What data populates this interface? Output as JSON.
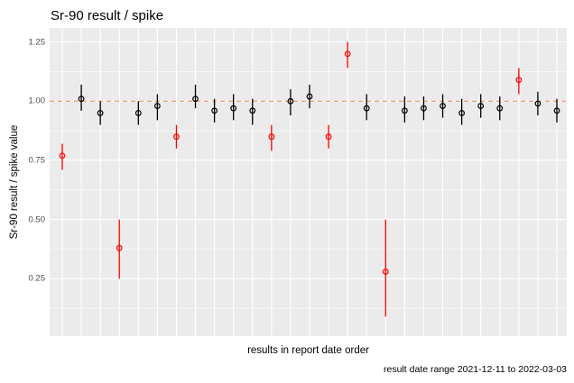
{
  "chart_data": {
    "type": "scatter",
    "title": "Sr-90 result / spike",
    "xlabel": "results in report date order",
    "ylabel": "Sr-90 result / spike value",
    "caption": "result date range 2021-12-11 to 2022-03-03",
    "legend": "none",
    "grid": true,
    "ylim": [
      0.0,
      1.31
    ],
    "yticks": [
      1.25,
      1.0,
      0.75,
      0.5,
      0.25
    ],
    "ytick_labels": [
      "1.25",
      "1.00",
      "0.75",
      "0.50",
      "0.25"
    ],
    "minor_gridlines": [
      1.125,
      0.875,
      0.625,
      0.375,
      0.125
    ],
    "reference_line": {
      "y": 1.0,
      "style": "dashed"
    },
    "points": [
      {
        "x": 1,
        "y": 0.77,
        "lo": 0.71,
        "hi": 0.82,
        "c": "red"
      },
      {
        "x": 2,
        "y": 1.01,
        "lo": 0.96,
        "hi": 1.07,
        "c": "black"
      },
      {
        "x": 3,
        "y": 0.95,
        "lo": 0.9,
        "hi": 1.0,
        "c": "black"
      },
      {
        "x": 4,
        "y": 0.38,
        "lo": 0.25,
        "hi": 0.5,
        "c": "red"
      },
      {
        "x": 5,
        "y": 0.95,
        "lo": 0.9,
        "hi": 1.0,
        "c": "black"
      },
      {
        "x": 6,
        "y": 0.98,
        "lo": 0.92,
        "hi": 1.03,
        "c": "black"
      },
      {
        "x": 7,
        "y": 0.85,
        "lo": 0.8,
        "hi": 0.9,
        "c": "red"
      },
      {
        "x": 8,
        "y": 1.01,
        "lo": 0.97,
        "hi": 1.07,
        "c": "black"
      },
      {
        "x": 9,
        "y": 0.96,
        "lo": 0.91,
        "hi": 1.01,
        "c": "black"
      },
      {
        "x": 10,
        "y": 0.97,
        "lo": 0.92,
        "hi": 1.03,
        "c": "black"
      },
      {
        "x": 11,
        "y": 0.96,
        "lo": 0.9,
        "hi": 1.01,
        "c": "black"
      },
      {
        "x": 12,
        "y": 0.85,
        "lo": 0.79,
        "hi": 0.9,
        "c": "red"
      },
      {
        "x": 13,
        "y": 1.0,
        "lo": 0.94,
        "hi": 1.05,
        "c": "black"
      },
      {
        "x": 14,
        "y": 1.02,
        "lo": 0.97,
        "hi": 1.07,
        "c": "black"
      },
      {
        "x": 15,
        "y": 0.85,
        "lo": 0.8,
        "hi": 0.9,
        "c": "red"
      },
      {
        "x": 16,
        "y": 1.2,
        "lo": 1.14,
        "hi": 1.25,
        "c": "red"
      },
      {
        "x": 17,
        "y": 0.97,
        "lo": 0.92,
        "hi": 1.03,
        "c": "black"
      },
      {
        "x": 18,
        "y": 0.28,
        "lo": 0.09,
        "hi": 0.5,
        "c": "red"
      },
      {
        "x": 19,
        "y": 0.96,
        "lo": 0.91,
        "hi": 1.02,
        "c": "black"
      },
      {
        "x": 20,
        "y": 0.97,
        "lo": 0.92,
        "hi": 1.02,
        "c": "black"
      },
      {
        "x": 21,
        "y": 0.98,
        "lo": 0.93,
        "hi": 1.03,
        "c": "black"
      },
      {
        "x": 22,
        "y": 0.95,
        "lo": 0.9,
        "hi": 1.01,
        "c": "black"
      },
      {
        "x": 23,
        "y": 0.98,
        "lo": 0.93,
        "hi": 1.03,
        "c": "black"
      },
      {
        "x": 24,
        "y": 0.97,
        "lo": 0.92,
        "hi": 1.02,
        "c": "black"
      },
      {
        "x": 25,
        "y": 1.09,
        "lo": 1.03,
        "hi": 1.14,
        "c": "red"
      },
      {
        "x": 26,
        "y": 0.99,
        "lo": 0.94,
        "hi": 1.04,
        "c": "black"
      },
      {
        "x": 27,
        "y": 0.96,
        "lo": 0.91,
        "hi": 1.01,
        "c": "black"
      }
    ],
    "colors": {
      "red": "#FF0000",
      "black": "#000000",
      "refline": "#F09072",
      "panel_bg": "#EBEBEB",
      "gridline": "#FFFFFF",
      "tick_label": "#4D4D4D",
      "text": "#000000"
    }
  }
}
